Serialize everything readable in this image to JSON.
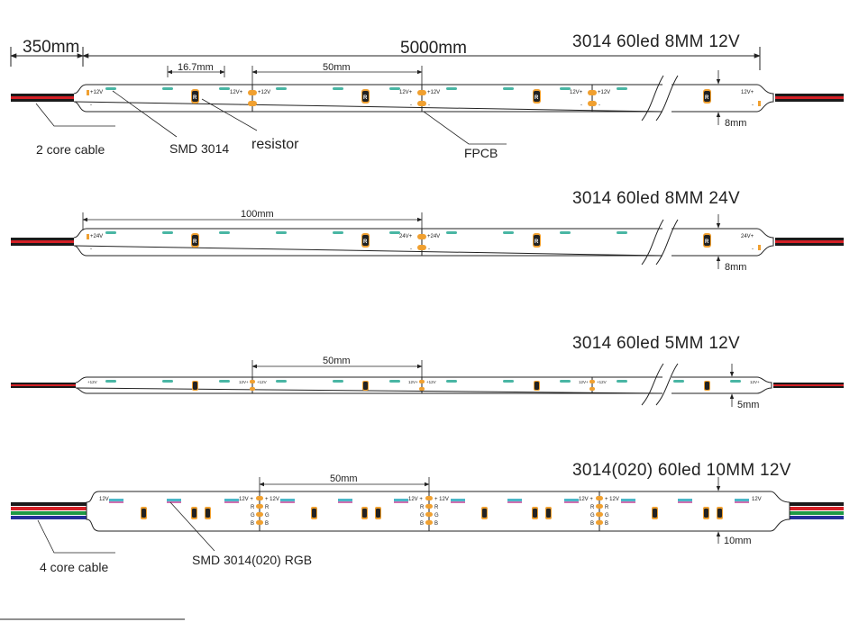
{
  "colors": {
    "line": "#222222",
    "led": "#49b6a4",
    "pad": "#f0a030",
    "cable_red": "#d42026",
    "cable_black": "#1a1a1a",
    "cable_green": "#1f9a45",
    "cable_blue": "#25319a",
    "resistor": "#222222",
    "rgb_led_a": "#4ab7c8",
    "rgb_led_b": "#d070b0"
  },
  "strip1": {
    "title": "3014 60led   8MM  12V",
    "dim_total_left": "350mm",
    "dim_total_main": "5000mm",
    "dim_pitch": "16.7mm",
    "dim_segment": "50mm",
    "width_label": "8mm",
    "cable_label": "2 core cable",
    "smd_label": "SMD 3014",
    "resistor_label": "resistor",
    "fpcb_label": "FPCB",
    "plus_label": "12V+",
    "plus_label_r": "+12V",
    "minus": "-",
    "end_plus": "+12V",
    "end_plus_r": "12V+",
    "resistor_mark": "R"
  },
  "strip2": {
    "title": "3014 60led   8MM  24V",
    "dim_segment": "100mm",
    "width_label": "8mm",
    "plus_label": "24V+",
    "plus_label_r": "+24V",
    "minus": "-",
    "end_plus": "+24V",
    "end_plus_r": "24V+",
    "resistor_mark": "R"
  },
  "strip3": {
    "title": "3014 60led   5MM 12V",
    "dim_segment": "50mm",
    "width_label": "5mm",
    "plus_label": "12V+",
    "plus_label_r": "+12V",
    "end_plus": "+12V",
    "end_plus_r": "12V+",
    "minus": "-",
    "resistor_mark": "R"
  },
  "strip4": {
    "title": "3014(020) 60led   10MM 12V",
    "dim_segment": "50mm",
    "width_label": "10mm",
    "cable_label": "4 core cable",
    "smd_label": "SMD 3014(020) RGB",
    "plus_label": "12V +",
    "plus_label_r": "+ 12V",
    "end_plus": "12V",
    "end_plus_r": "12V",
    "r_label": "R",
    "g_label": "G",
    "b_label": "B",
    "resistor_mark": "R"
  }
}
